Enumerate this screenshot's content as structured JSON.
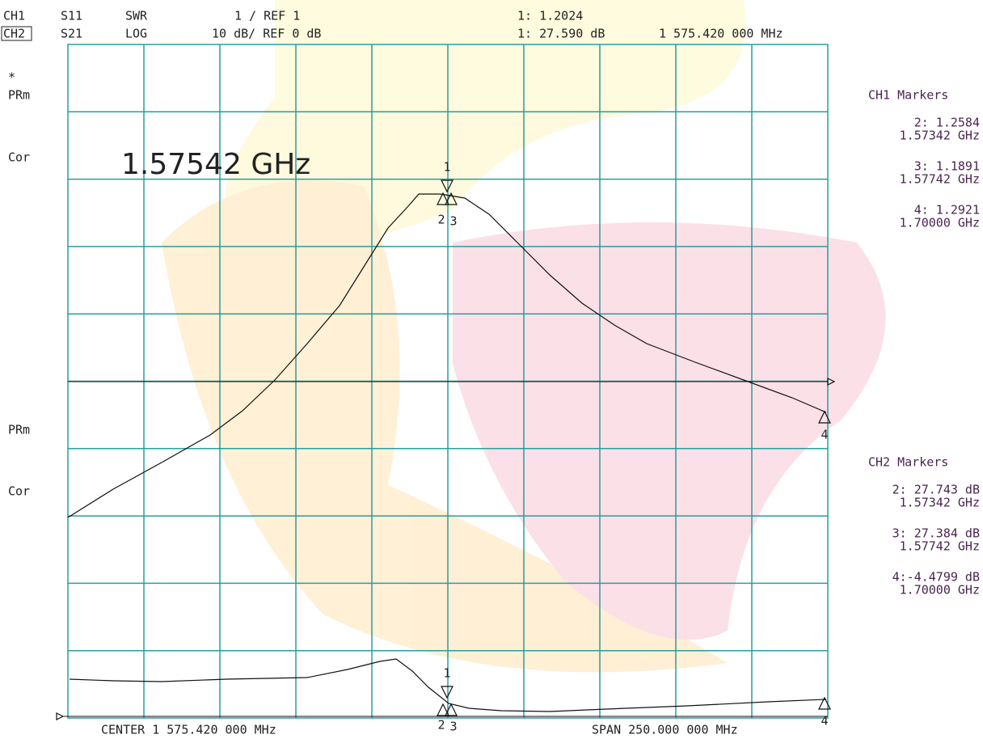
{
  "header": {
    "ch1": {
      "channel": "CH1",
      "param": "S11",
      "format": "SWR",
      "scale": "1  / REF 1",
      "marker": "1: 1.2024"
    },
    "ch2": {
      "channel": "CH2",
      "param": "S21",
      "format": "LOG",
      "scale": "10 dB/ REF 0 dB",
      "marker": "1: 27.590 dB",
      "frequency": "1 575.420 000 MHz"
    }
  },
  "left_labels": [
    "*",
    "PRm",
    "Cor",
    "PRm",
    "Cor"
  ],
  "annotation": "1.57542 GHz",
  "ch1_markers": {
    "title": "CH1 Markers",
    "entries": [
      {
        "value": "2: 1.2584",
        "frequency": "1.57342 GHz"
      },
      {
        "value": "3: 1.1891",
        "frequency": "1.57742 GHz"
      },
      {
        "value": "4: 1.2921",
        "frequency": "1.70000 GHz"
      }
    ]
  },
  "ch2_markers": {
    "title": "CH2 Markers",
    "entries": [
      {
        "value": "2: 27.743 dB",
        "frequency": "1.57342 GHz"
      },
      {
        "value": "3: 27.384 dB",
        "frequency": "1.57742 GHz"
      },
      {
        "value": "4:-4.4799 dB",
        "frequency": "1.70000 GHz"
      }
    ]
  },
  "trace_marker_labels": {
    "upper": [
      "1",
      "2",
      "3",
      "4"
    ],
    "lower": [
      "1",
      "2",
      "3",
      "4"
    ]
  },
  "footer": {
    "center": "CENTER 1 575.420 000 MHz",
    "span": "SPAN  250.000 000 MHz"
  }
}
